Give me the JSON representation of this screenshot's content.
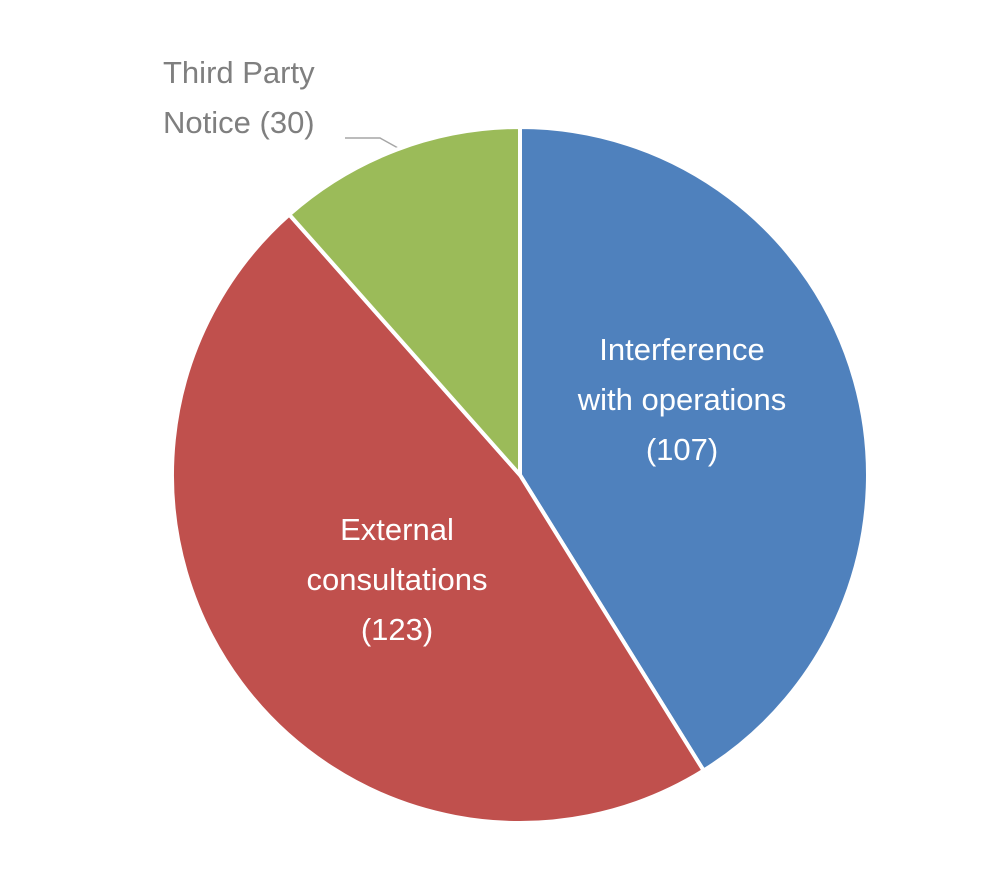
{
  "chart_data": {
    "type": "pie",
    "categories": [
      "Interference with operations",
      "External consultations",
      "Third Party Notice"
    ],
    "values": [
      107,
      123,
      30
    ],
    "value_labels": [
      "(107)",
      "(123)",
      "(30)"
    ],
    "colors": [
      "#4f81bd",
      "#c0504d",
      "#9bbb59"
    ]
  }
}
